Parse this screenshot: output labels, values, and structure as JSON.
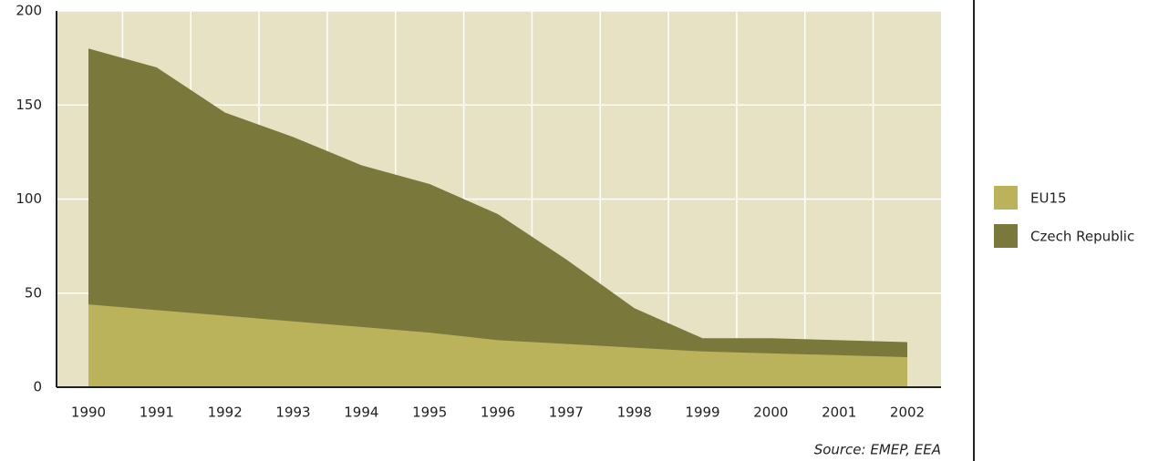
{
  "chart_data": {
    "type": "area",
    "categories": [
      "1990",
      "1991",
      "1992",
      "1993",
      "1994",
      "1995",
      "1996",
      "1997",
      "1998",
      "1999",
      "2000",
      "2001",
      "2002"
    ],
    "series": [
      {
        "name": "Czech Republic",
        "color": "#7b783c",
        "values": [
          180,
          170,
          146,
          133,
          118,
          108,
          92,
          68,
          42,
          26,
          26,
          25,
          24
        ]
      },
      {
        "name": "EU15",
        "color": "#bab35b",
        "values": [
          44,
          41,
          38,
          35,
          32,
          29,
          25,
          23,
          21,
          19,
          18,
          17,
          16
        ]
      }
    ],
    "legend_order": [
      "EU15",
      "Czech Republic"
    ],
    "ylim": [
      0,
      200
    ],
    "yticks": [
      0,
      50,
      100,
      150,
      200
    ],
    "grid": true,
    "source": "Source: EMEP, EEA"
  }
}
